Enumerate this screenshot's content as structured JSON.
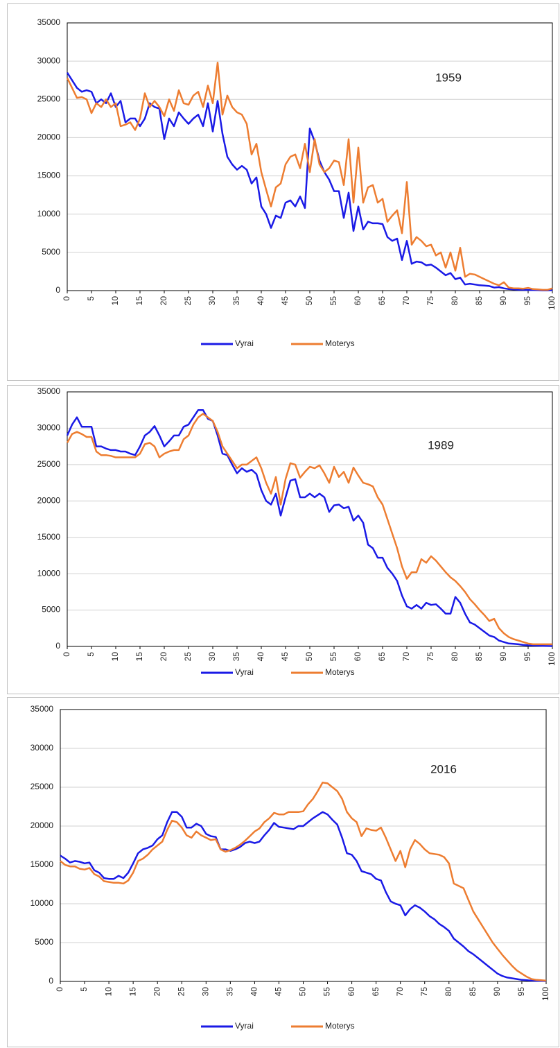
{
  "chart_data": [
    {
      "type": "line",
      "annotation": "1959",
      "grid": true,
      "legend": "bottom",
      "x": [
        0,
        1,
        2,
        3,
        4,
        5,
        6,
        7,
        8,
        9,
        10,
        11,
        12,
        13,
        14,
        15,
        16,
        17,
        18,
        19,
        20,
        21,
        22,
        23,
        24,
        25,
        26,
        27,
        28,
        29,
        30,
        31,
        32,
        33,
        34,
        35,
        36,
        37,
        38,
        39,
        40,
        41,
        42,
        43,
        44,
        45,
        46,
        47,
        48,
        49,
        50,
        51,
        52,
        53,
        54,
        55,
        56,
        57,
        58,
        59,
        60,
        61,
        62,
        63,
        64,
        65,
        66,
        67,
        68,
        69,
        70,
        71,
        72,
        73,
        74,
        75,
        76,
        77,
        78,
        79,
        80,
        81,
        82,
        83,
        84,
        85,
        86,
        87,
        88,
        89,
        90,
        91,
        92,
        93,
        94,
        95,
        96,
        97,
        98,
        99,
        100
      ],
      "xlim": [
        0,
        100
      ],
      "xticks": [
        0,
        5,
        10,
        15,
        20,
        25,
        30,
        35,
        40,
        45,
        50,
        55,
        60,
        65,
        70,
        75,
        80,
        85,
        90,
        95,
        100
      ],
      "ylim": [
        0,
        35000
      ],
      "yticks": [
        0,
        5000,
        10000,
        15000,
        20000,
        25000,
        30000,
        35000
      ],
      "series": [
        {
          "name": "Vyrai",
          "color": "#1a1ae6",
          "values": [
            28500,
            27500,
            26500,
            26000,
            26200,
            26000,
            24500,
            25000,
            24500,
            25800,
            24000,
            24800,
            22000,
            22500,
            22500,
            21500,
            22500,
            24500,
            24000,
            23800,
            19800,
            22500,
            21500,
            23300,
            22500,
            21800,
            22500,
            23000,
            21500,
            24500,
            20800,
            24800,
            20500,
            17500,
            16500,
            15800,
            16300,
            15800,
            14000,
            14800,
            11000,
            10000,
            8200,
            9800,
            9500,
            11500,
            11800,
            11000,
            12300,
            10800,
            21200,
            19500,
            17000,
            15500,
            14500,
            13000,
            13000,
            9500,
            12800,
            7800,
            11000,
            8000,
            9000,
            8800,
            8800,
            8700,
            7000,
            6500,
            6800,
            4000,
            6500,
            3500,
            3800,
            3700,
            3300,
            3400,
            3000,
            2500,
            2000,
            2300,
            1500,
            1700,
            800,
            900,
            800,
            700,
            650,
            600,
            400,
            450,
            300,
            200,
            150,
            120,
            100,
            80,
            60,
            50,
            30,
            20,
            50
          ]
        },
        {
          "name": "Moterys",
          "color": "#ed7d31",
          "values": [
            27800,
            26500,
            25200,
            25300,
            25000,
            23200,
            24500,
            24000,
            25000,
            24000,
            24500,
            21500,
            21700,
            22000,
            21000,
            22500,
            25800,
            24000,
            24800,
            24000,
            22800,
            25000,
            23500,
            26200,
            24500,
            24300,
            25500,
            26000,
            24000,
            26800,
            24500,
            29800,
            23000,
            25500,
            24000,
            23300,
            23000,
            21800,
            17800,
            19200,
            15500,
            13200,
            11000,
            13500,
            14000,
            16500,
            17500,
            17800,
            16000,
            19200,
            15500,
            19800,
            16500,
            15500,
            16000,
            17000,
            16800,
            13800,
            19800,
            11500,
            18700,
            11500,
            13500,
            13800,
            11500,
            12000,
            9000,
            9800,
            10500,
            7500,
            14200,
            6000,
            7000,
            6500,
            5800,
            6000,
            4600,
            5000,
            3000,
            5000,
            2600,
            5600,
            1800,
            2200,
            2100,
            1800,
            1500,
            1200,
            900,
            700,
            1100,
            400,
            300,
            300,
            250,
            350,
            200,
            150,
            100,
            100,
            300
          ]
        }
      ]
    },
    {
      "type": "line",
      "annotation": "1989",
      "grid": true,
      "legend": "bottom",
      "x": [
        0,
        1,
        2,
        3,
        4,
        5,
        6,
        7,
        8,
        9,
        10,
        11,
        12,
        13,
        14,
        15,
        16,
        17,
        18,
        19,
        20,
        21,
        22,
        23,
        24,
        25,
        26,
        27,
        28,
        29,
        30,
        31,
        32,
        33,
        34,
        35,
        36,
        37,
        38,
        39,
        40,
        41,
        42,
        43,
        44,
        45,
        46,
        47,
        48,
        49,
        50,
        51,
        52,
        53,
        54,
        55,
        56,
        57,
        58,
        59,
        60,
        61,
        62,
        63,
        64,
        65,
        66,
        67,
        68,
        69,
        70,
        71,
        72,
        73,
        74,
        75,
        76,
        77,
        78,
        79,
        80,
        81,
        82,
        83,
        84,
        85,
        86,
        87,
        88,
        89,
        90,
        91,
        92,
        93,
        94,
        95,
        96,
        97,
        98,
        99,
        100
      ],
      "xlim": [
        0,
        100
      ],
      "xticks": [
        0,
        5,
        10,
        15,
        20,
        25,
        30,
        35,
        40,
        45,
        50,
        55,
        60,
        65,
        70,
        75,
        80,
        85,
        90,
        95,
        100
      ],
      "ylim": [
        0,
        35000
      ],
      "yticks": [
        0,
        5000,
        10000,
        15000,
        20000,
        25000,
        30000,
        35000
      ],
      "series": [
        {
          "name": "Vyrai",
          "color": "#1a1ae6",
          "values": [
            29000,
            30500,
            31500,
            30200,
            30200,
            30200,
            27500,
            27500,
            27200,
            27000,
            27000,
            26800,
            26800,
            26500,
            26300,
            27500,
            29000,
            29500,
            30300,
            29000,
            27500,
            28200,
            29000,
            29000,
            30200,
            30500,
            31500,
            32500,
            32500,
            31300,
            31000,
            29000,
            26500,
            26300,
            25000,
            23800,
            24500,
            24000,
            24300,
            23700,
            21500,
            20000,
            19500,
            21000,
            18000,
            20500,
            22800,
            23000,
            20500,
            20500,
            21000,
            20500,
            21000,
            20500,
            18500,
            19400,
            19500,
            19000,
            19200,
            17300,
            18000,
            17000,
            14000,
            13500,
            12200,
            12200,
            10800,
            10000,
            9000,
            7000,
            5500,
            5200,
            5700,
            5200,
            6000,
            5700,
            5800,
            5200,
            4500,
            4500,
            6800,
            6000,
            4500,
            3300,
            3000,
            2500,
            2000,
            1500,
            1300,
            800,
            600,
            400,
            350,
            300,
            200,
            150,
            120,
            100,
            80,
            60,
            50
          ]
        },
        {
          "name": "Moterys",
          "color": "#ed7d31",
          "values": [
            28000,
            29200,
            29500,
            29200,
            28800,
            28800,
            26800,
            26300,
            26300,
            26200,
            26000,
            26000,
            26000,
            26000,
            26000,
            26500,
            27800,
            28000,
            27500,
            26000,
            26500,
            26800,
            27000,
            27000,
            28500,
            29000,
            30500,
            31500,
            32000,
            31500,
            31000,
            29500,
            27500,
            26500,
            25500,
            24500,
            25000,
            25000,
            25500,
            26000,
            24500,
            22500,
            21000,
            23300,
            19500,
            23000,
            25200,
            25000,
            23200,
            24000,
            24700,
            24500,
            24900,
            23800,
            22500,
            24700,
            23300,
            24000,
            22500,
            24600,
            23500,
            22500,
            22300,
            22000,
            20500,
            19500,
            17500,
            15500,
            13500,
            11000,
            9300,
            10200,
            10200,
            12000,
            11500,
            12400,
            11800,
            11000,
            10200,
            9500,
            9000,
            8300,
            7500,
            6500,
            5800,
            5000,
            4300,
            3500,
            3800,
            2500,
            1800,
            1300,
            1000,
            800,
            600,
            400,
            300,
            300,
            300,
            300,
            300
          ]
        }
      ]
    },
    {
      "type": "line",
      "annotation": "2016",
      "grid": true,
      "legend": "bottom",
      "x": [
        0,
        1,
        2,
        3,
        4,
        5,
        6,
        7,
        8,
        9,
        10,
        11,
        12,
        13,
        14,
        15,
        16,
        17,
        18,
        19,
        20,
        21,
        22,
        23,
        24,
        25,
        26,
        27,
        28,
        29,
        30,
        31,
        32,
        33,
        34,
        35,
        36,
        37,
        38,
        39,
        40,
        41,
        42,
        43,
        44,
        45,
        46,
        47,
        48,
        49,
        50,
        51,
        52,
        53,
        54,
        55,
        56,
        57,
        58,
        59,
        60,
        61,
        62,
        63,
        64,
        65,
        66,
        67,
        68,
        69,
        70,
        71,
        72,
        73,
        74,
        75,
        76,
        77,
        78,
        79,
        80,
        81,
        82,
        83,
        84,
        85,
        86,
        87,
        88,
        89,
        90,
        91,
        92,
        93,
        94,
        95,
        96,
        97,
        98,
        99,
        100
      ],
      "xlim": [
        0,
        100
      ],
      "xticks": [
        0,
        5,
        10,
        15,
        20,
        25,
        30,
        35,
        40,
        45,
        50,
        55,
        60,
        65,
        70,
        75,
        80,
        85,
        90,
        95,
        100
      ],
      "ylim": [
        0,
        35000
      ],
      "yticks": [
        0,
        5000,
        10000,
        15000,
        20000,
        25000,
        30000,
        35000
      ],
      "series": [
        {
          "name": "Vyrai",
          "color": "#1a1ae6",
          "values": [
            16200,
            15800,
            15300,
            15500,
            15400,
            15200,
            15300,
            14300,
            14000,
            13300,
            13200,
            13200,
            13600,
            13300,
            14000,
            15200,
            16500,
            17000,
            17200,
            17500,
            18300,
            18800,
            20500,
            21800,
            21800,
            21200,
            19800,
            19800,
            20300,
            20000,
            19000,
            18700,
            18600,
            17000,
            17000,
            16800,
            17000,
            17300,
            17800,
            18000,
            17800,
            18000,
            18800,
            19500,
            20400,
            19900,
            19800,
            19700,
            19600,
            20000,
            20000,
            20500,
            21000,
            21400,
            21800,
            21500,
            20800,
            20200,
            18500,
            16500,
            16300,
            15500,
            14200,
            14000,
            13800,
            13200,
            13000,
            11500,
            10300,
            10000,
            9800,
            8500,
            9300,
            9800,
            9500,
            9000,
            8400,
            8000,
            7400,
            7000,
            6500,
            5500,
            5000,
            4500,
            3900,
            3500,
            3000,
            2500,
            2000,
            1500,
            1000,
            700,
            500,
            400,
            300,
            200,
            150,
            100,
            80,
            60,
            50
          ]
        },
        {
          "name": "Moterys",
          "color": "#ed7d31",
          "values": [
            15500,
            15000,
            14800,
            14800,
            14500,
            14400,
            14600,
            13800,
            13500,
            12900,
            12800,
            12700,
            12700,
            12600,
            13000,
            14000,
            15500,
            15800,
            16300,
            17000,
            17500,
            18000,
            19500,
            20700,
            20500,
            19800,
            18800,
            18500,
            19300,
            18800,
            18500,
            18200,
            18300,
            17000,
            16700,
            16900,
            17200,
            17600,
            18100,
            18700,
            19300,
            19700,
            20500,
            21000,
            21700,
            21500,
            21500,
            21800,
            21800,
            21800,
            21900,
            22800,
            23500,
            24500,
            25600,
            25500,
            25000,
            24500,
            23500,
            21800,
            21000,
            20500,
            18700,
            19700,
            19500,
            19400,
            19800,
            18500,
            17000,
            15500,
            16800,
            14700,
            17000,
            18200,
            17700,
            17000,
            16500,
            16400,
            16300,
            16000,
            15200,
            12600,
            12300,
            12000,
            10500,
            9000,
            8000,
            7000,
            6000,
            5000,
            4200,
            3400,
            2700,
            2000,
            1400,
            1000,
            600,
            300,
            200,
            150,
            100
          ]
        }
      ]
    }
  ]
}
